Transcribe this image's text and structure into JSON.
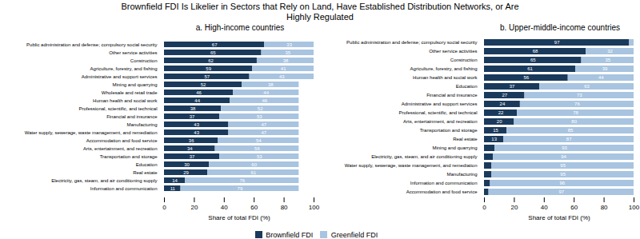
{
  "title": "Brownfield FDI Is Likelier in Sectors that Rely on Land, Have Established Distribution Networks, or Are\nHighly Regulated",
  "chart_data": [
    {
      "type": "bar",
      "title": "a. High-income countries",
      "orientation": "horizontal",
      "stacked": true,
      "categories": [
        "Public administration and defense; compulsory social security",
        "Other service activities",
        "Construction",
        "Agriculture, forestry, and fishing",
        "Administrative and support services",
        "Mining and quarrying",
        "Wholesale and retail trade",
        "Human health and social work",
        "Professional, scientific, and technical",
        "Financial and insurance",
        "Manufacturing",
        "Water supply, sewerage, waste management, and remediation",
        "Accommodation and food service",
        "Arts, entertainment, and recreation",
        "Transportation and storage",
        "Education",
        "Real estate",
        "Electricity, gas, steam, and air conditioning supply",
        "Information and communication"
      ],
      "series": [
        {
          "name": "Brownfield FDI",
          "color": "#1a3a5c",
          "values": [
            67,
            65,
            62,
            59,
            57,
            52,
            46,
            44,
            38,
            37,
            43,
            43,
            36,
            34,
            37,
            30,
            29,
            14,
            11
          ],
          "value_labels": [
            "67",
            "65",
            "62",
            "59",
            "57",
            "52",
            "46",
            "44",
            "38",
            "37",
            "43",
            "43",
            "36",
            "34",
            "37",
            "30",
            "29",
            "14",
            "11"
          ]
        },
        {
          "name": "Greenfield FDI",
          "color": "#a8c4e0",
          "values": [
            33,
            35,
            38,
            41,
            43,
            38,
            44,
            46,
            52,
            53,
            47,
            47,
            54,
            56,
            53,
            60,
            61,
            76,
            79
          ],
          "value_labels": [
            "33",
            "35",
            "38",
            "41",
            "43",
            "38",
            "44",
            "46",
            "52",
            "53",
            "47",
            "47",
            "54",
            "56",
            "53",
            "60",
            "61",
            "76",
            "79"
          ]
        }
      ],
      "xlabel": "Share of total FDI (%)",
      "xlim": [
        0,
        100
      ],
      "xticks": [
        0,
        20,
        40,
        60,
        80,
        100
      ],
      "grid": false,
      "legend": "bottom",
      "data_labels": true
    },
    {
      "type": "bar",
      "title": "b. Upper-middle-income countries",
      "orientation": "horizontal",
      "stacked": true,
      "categories": [
        "Public administration and defense; compulsory social security",
        "Other service activities",
        "Construction",
        "Agriculture, forestry, and fishing",
        "Human health and social work",
        "Education",
        "Financial and insurance",
        "Administrative and support services",
        "Professional, scientific, and technical",
        "Arts, entertainment, and recreation",
        "Transportation and storage",
        "Real estate",
        "Mining and quarrying",
        "Electricity, gas, steam, and air conditioning supply",
        "Water supply, sewerage, waste management, and remediation",
        "Manufacturing",
        "Information and communication",
        "Accommodation and food service"
      ],
      "series": [
        {
          "name": "Brownfield FDI",
          "color": "#1a3a5c",
          "values": [
            97,
            68,
            65,
            61,
            56,
            37,
            27,
            24,
            22,
            20,
            15,
            13,
            7,
            6,
            5,
            5,
            4,
            3
          ],
          "value_labels": [
            "97",
            "68",
            "65",
            "61",
            "56",
            "37",
            "27",
            "24",
            "22",
            "20",
            "15",
            "13",
            null,
            null,
            null,
            null,
            null,
            null
          ]
        },
        {
          "name": "Greenfield FDI",
          "color": "#a8c4e0",
          "values": [
            3,
            32,
            35,
            39,
            44,
            63,
            73,
            76,
            78,
            80,
            85,
            87,
            93,
            94,
            95,
            95,
            96,
            97
          ],
          "value_labels": [
            null,
            "32",
            "35",
            "39",
            "44",
            "63",
            "73",
            "76",
            "78",
            "80",
            "85",
            "87",
            "93",
            "94",
            "95",
            "95",
            "96",
            "97"
          ]
        }
      ],
      "xlabel": "Share of total FDI (%)",
      "xlim": [
        0,
        100
      ],
      "xticks": [
        0,
        20,
        40,
        60,
        80,
        100
      ],
      "grid": false,
      "legend": "bottom",
      "data_labels": true
    }
  ]
}
